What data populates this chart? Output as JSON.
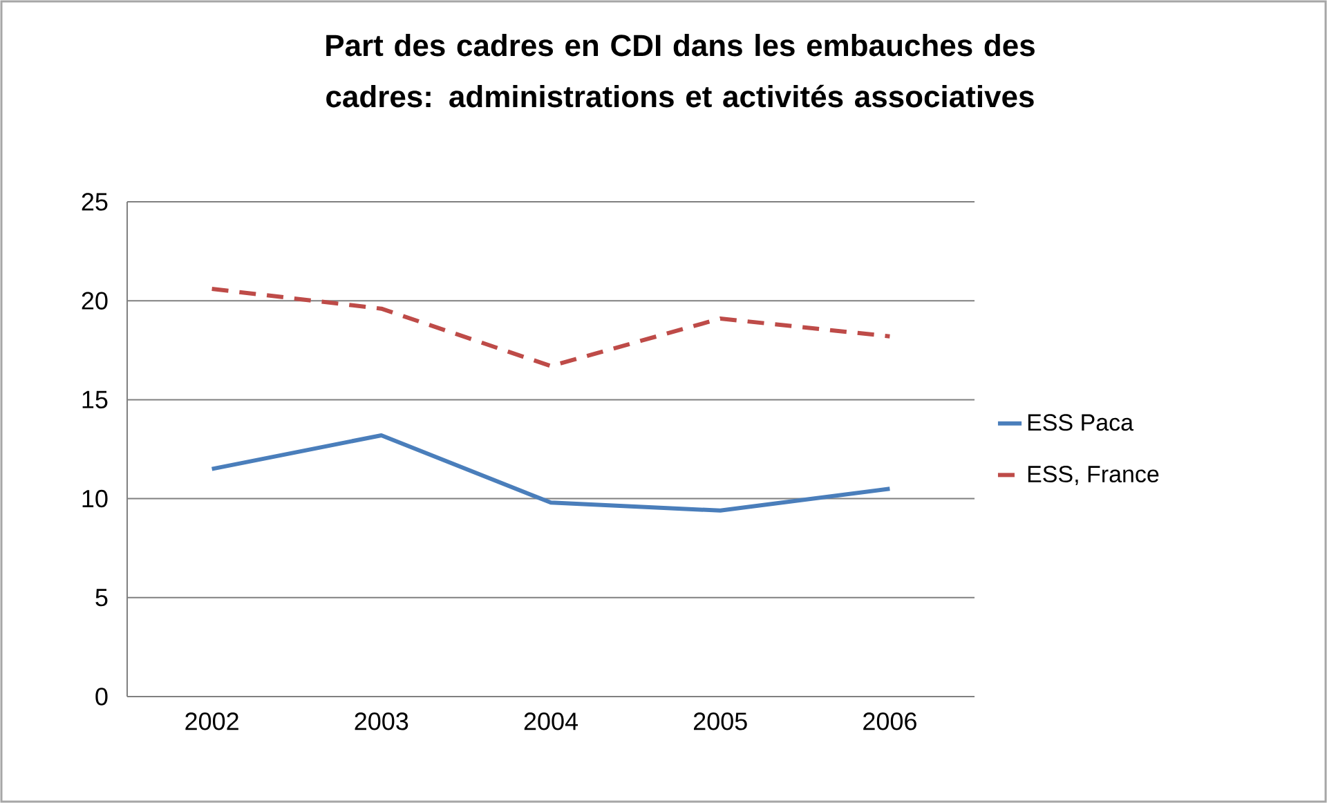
{
  "chart_data": {
    "type": "line",
    "title": "Part des cadres en CDI dans les embauches des cadres: administrations et activités associatives",
    "categories": [
      "2002",
      "2003",
      "2004",
      "2005",
      "2006"
    ],
    "series": [
      {
        "name": "ESS Paca",
        "color": "#4a7ebb",
        "line_style": "solid",
        "values": [
          11.5,
          13.2,
          9.8,
          9.4,
          10.5
        ]
      },
      {
        "name": "ESS, France",
        "color": "#be4b48",
        "line_style": "dashed",
        "values": [
          20.6,
          19.6,
          16.7,
          19.1,
          18.2
        ]
      }
    ],
    "ylim": [
      0,
      25
    ],
    "yticks": [
      0,
      5,
      10,
      15,
      20,
      25
    ],
    "grid": "y",
    "legend": "right"
  }
}
